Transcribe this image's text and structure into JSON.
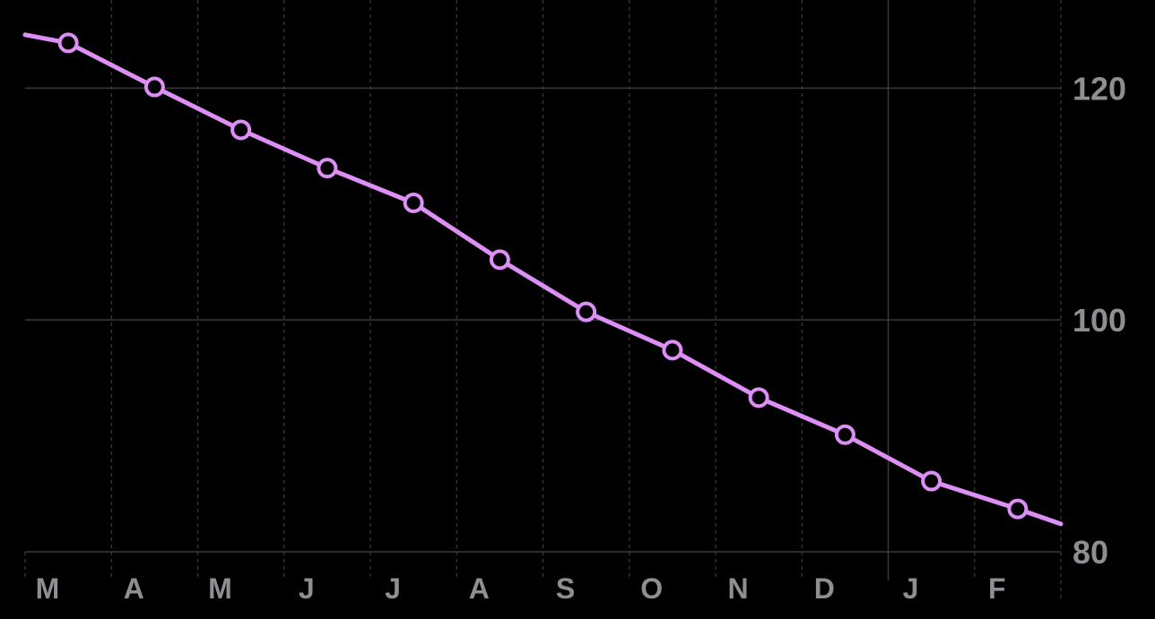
{
  "chart_data": {
    "type": "line",
    "title": "",
    "xlabel": "",
    "ylabel": "",
    "x_ticks": [
      "M",
      "A",
      "M",
      "J",
      "J",
      "A",
      "S",
      "O",
      "N",
      "D",
      "J",
      "F"
    ],
    "y_ticks": [
      80,
      100,
      120
    ],
    "ylim": [
      80,
      127.6
    ],
    "grid": true,
    "legend": "none",
    "colors": {
      "background": "#000000",
      "line": "#dd8ff5",
      "point_fill": "#000000",
      "solid_grid": "#3a3a3c",
      "dashed_grid": "#3a3a3c",
      "tick_label": "#8e8e93"
    },
    "series": [
      {
        "x": [
          0.5,
          1.5,
          2.5,
          3.5,
          4.5,
          5.5,
          6.5,
          7.5,
          8.5,
          9.5,
          10.5,
          11.5
        ],
        "values": [
          123.9,
          120.1,
          116.4,
          113.1,
          110.1,
          105.2,
          100.7,
          97.4,
          93.3,
          90.1,
          86.1,
          83.7
        ]
      }
    ],
    "line_extends": {
      "start": 124.6,
      "end": 82.4
    }
  }
}
